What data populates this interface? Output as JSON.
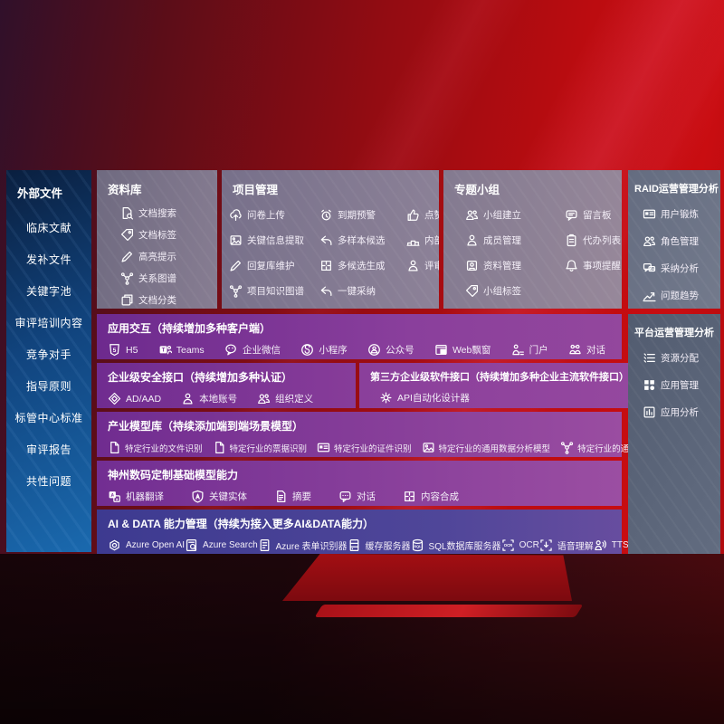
{
  "left_sidebar": {
    "title": "外部文件",
    "items": [
      "临床文献",
      "发补文件",
      "关键字池",
      "审评培训内容",
      "竞争对手",
      "指导原则",
      "标管中心标准",
      "审评报告",
      "共性问题"
    ]
  },
  "repository_panel": {
    "title": "资料库",
    "items": [
      {
        "icon": "doc-search",
        "label": "文档搜索"
      },
      {
        "icon": "tag",
        "label": "文档标签"
      },
      {
        "icon": "pencil",
        "label": "高亮提示"
      },
      {
        "icon": "graph",
        "label": "关系图谱"
      },
      {
        "icon": "copy",
        "label": "文档分类"
      }
    ]
  },
  "project_panel": {
    "title": "项目管理",
    "items": [
      {
        "icon": "cloud-up",
        "label": "问卷上传"
      },
      {
        "icon": "alarm",
        "label": "到期预警"
      },
      {
        "icon": "thumb",
        "label": "点赞感谢"
      },
      {
        "icon": "image",
        "label": "关键信息提取"
      },
      {
        "icon": "reply",
        "label": "多样本候选"
      },
      {
        "icon": "rank",
        "label": "内部专家排名"
      },
      {
        "icon": "pencil",
        "label": "回复库维护"
      },
      {
        "icon": "puzzle",
        "label": "多候选生成"
      },
      {
        "icon": "person",
        "label": "评审员画像"
      },
      {
        "icon": "graph",
        "label": "项目知识图谱"
      },
      {
        "icon": "reply",
        "label": "一键采纳"
      }
    ]
  },
  "group_panel": {
    "title": "专题小组",
    "items": [
      {
        "icon": "users",
        "label": "小组建立"
      },
      {
        "icon": "bbs",
        "label": "留言板"
      },
      {
        "icon": "person",
        "label": "成员管理"
      },
      {
        "icon": "clipboard",
        "label": "代办列表"
      },
      {
        "icon": "album",
        "label": "资料管理"
      },
      {
        "icon": "bell",
        "label": "事项提醒"
      },
      {
        "icon": "tag",
        "label": "小组标签"
      }
    ]
  },
  "raid_panel": {
    "title": "RAID运营管理分析",
    "items": [
      {
        "icon": "card",
        "label": "用户锻炼"
      },
      {
        "icon": "users",
        "label": "角色管理"
      },
      {
        "icon": "chat-qa",
        "label": "采纳分析"
      },
      {
        "icon": "trend",
        "label": "问题趋势"
      }
    ]
  },
  "platform_panel": {
    "title": "平台运营管理分析",
    "items": [
      {
        "icon": "list",
        "label": "资源分配"
      },
      {
        "icon": "grid",
        "label": "应用管理"
      },
      {
        "icon": "chart",
        "label": "应用分析"
      }
    ]
  },
  "interaction_row": {
    "title": "应用交互（持续增加多种客户端）",
    "items": [
      {
        "icon": "h5",
        "label": "H5"
      },
      {
        "icon": "teams",
        "label": "Teams"
      },
      {
        "icon": "wechat",
        "label": "企业微信"
      },
      {
        "icon": "mini",
        "label": "小程序"
      },
      {
        "icon": "public",
        "label": "公众号"
      },
      {
        "icon": "webwin",
        "label": "Web飘窗"
      },
      {
        "icon": "portal",
        "label": "门户"
      },
      {
        "icon": "dialog",
        "label": "对话"
      }
    ]
  },
  "security_row": {
    "title": "企业级安全接口（持续增加多种认证）",
    "items": [
      {
        "icon": "diamond",
        "label": "AD/AAD"
      },
      {
        "icon": "person",
        "label": "本地账号"
      },
      {
        "icon": "users",
        "label": "组织定义"
      }
    ]
  },
  "thirdparty_row": {
    "title": "第三方企业级软件接口（持续增加多种企业主流软件接口）",
    "items": [
      {
        "icon": "gear",
        "label": "API自动化设计器"
      }
    ]
  },
  "industry_row": {
    "title": "产业模型库（持续添加端到端场景模型）",
    "items": [
      {
        "icon": "doc",
        "label": "特定行业的文件识别"
      },
      {
        "icon": "receipt",
        "label": "特定行业的票据识别"
      },
      {
        "icon": "card",
        "label": "特定行业的证件识别"
      },
      {
        "icon": "image",
        "label": "特定行业的通用数据分析模型"
      },
      {
        "icon": "graph",
        "label": "特定行业的通用知识图谱模型"
      }
    ]
  },
  "base_model_row": {
    "title": "神州数码定制基础模型能力",
    "items": [
      {
        "icon": "translate",
        "label": "机器翻译"
      },
      {
        "icon": "shield-a",
        "label": "关键实体"
      },
      {
        "icon": "summary",
        "label": "摘要"
      },
      {
        "icon": "chat",
        "label": "对话"
      },
      {
        "icon": "puzzle",
        "label": "内容合成"
      }
    ]
  },
  "aidata_row": {
    "title": "AI & DATA 能力管理（持续为接入更多AI&DATA能力）",
    "items": [
      {
        "icon": "openai",
        "label": "Azure Open AI"
      },
      {
        "icon": "search-doc",
        "label": "Azure Search"
      },
      {
        "icon": "form",
        "label": "Azure 表单识别器"
      },
      {
        "icon": "cache",
        "label": "缓存服务器"
      },
      {
        "icon": "db",
        "label": "SQL数据库服务器"
      },
      {
        "icon": "ocr",
        "label": "OCR"
      },
      {
        "icon": "voice",
        "label": "语音理解"
      },
      {
        "icon": "tts",
        "label": "TTS"
      }
    ]
  }
}
